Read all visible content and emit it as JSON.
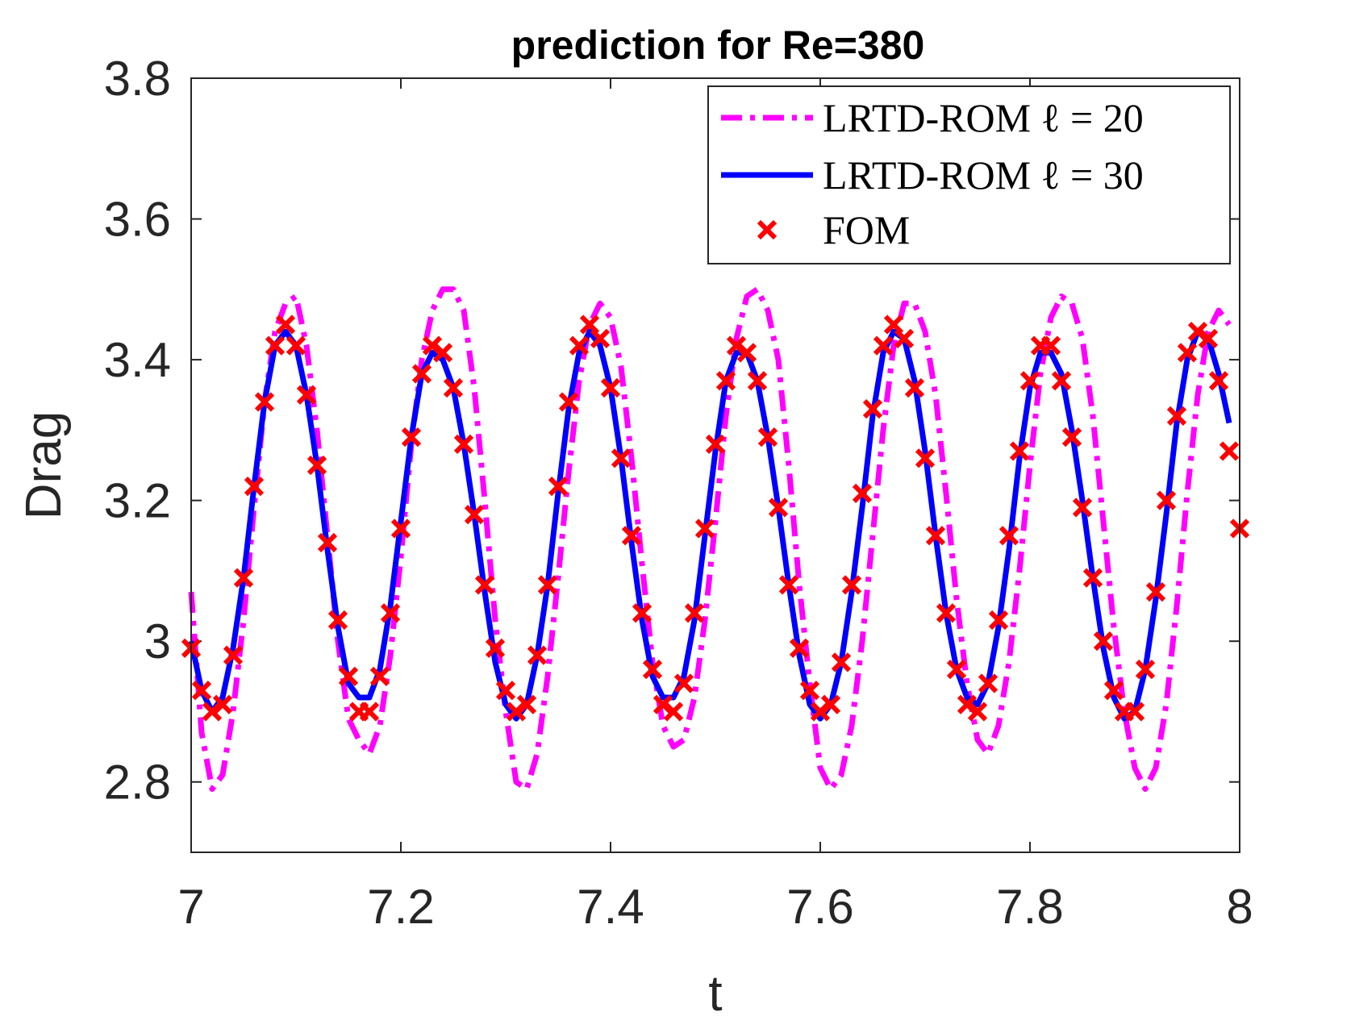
{
  "chart_data": {
    "type": "line",
    "title": "prediction for Re=380",
    "xlabel": "t",
    "ylabel": "Drag",
    "xlim": [
      7,
      8
    ],
    "ylim": [
      2.7,
      3.8
    ],
    "xticks": [
      7,
      7.2,
      7.4,
      7.6,
      7.8,
      8
    ],
    "xtick_labels": [
      "7",
      "7.2",
      "7.4",
      "7.6",
      "7.8",
      "8"
    ],
    "yticks": [
      2.8,
      3.0,
      3.2,
      3.4,
      3.6,
      3.8
    ],
    "ytick_labels": [
      "2.8",
      "3",
      "3.2",
      "3.4",
      "3.6",
      "3.8"
    ],
    "grid": false,
    "legend_position": "top-right",
    "series": [
      {
        "name": "LRTD-ROM ℓ = 20",
        "style": "dash-dot",
        "color": "#ff00ff",
        "x": [
          7.0,
          7.01,
          7.02,
          7.03,
          7.04,
          7.05,
          7.06,
          7.07,
          7.08,
          7.09,
          7.1,
          7.11,
          7.12,
          7.13,
          7.14,
          7.15,
          7.16,
          7.17,
          7.18,
          7.19,
          7.2,
          7.21,
          7.22,
          7.23,
          7.24,
          7.25,
          7.26,
          7.27,
          7.28,
          7.29,
          7.3,
          7.31,
          7.32,
          7.33,
          7.34,
          7.35,
          7.36,
          7.37,
          7.38,
          7.39,
          7.4,
          7.41,
          7.42,
          7.43,
          7.44,
          7.45,
          7.46,
          7.47,
          7.48,
          7.49,
          7.5,
          7.51,
          7.52,
          7.53,
          7.54,
          7.55,
          7.56,
          7.57,
          7.58,
          7.59,
          7.6,
          7.61,
          7.62,
          7.63,
          7.64,
          7.65,
          7.66,
          7.67,
          7.68,
          7.69,
          7.7,
          7.71,
          7.72,
          7.73,
          7.74,
          7.75,
          7.76,
          7.77,
          7.78,
          7.79,
          7.8,
          7.81,
          7.82,
          7.83,
          7.84,
          7.85,
          7.86,
          7.87,
          7.88,
          7.89,
          7.9,
          7.91,
          7.92,
          7.93,
          7.94,
          7.95,
          7.96,
          7.97,
          7.98,
          7.99
        ],
        "y": [
          3.07,
          2.87,
          2.79,
          2.81,
          2.9,
          3.03,
          3.19,
          3.34,
          3.44,
          3.48,
          3.49,
          3.42,
          3.3,
          3.15,
          3.0,
          2.89,
          2.86,
          2.84,
          2.88,
          2.98,
          3.12,
          3.28,
          3.4,
          3.47,
          3.5,
          3.5,
          3.47,
          3.36,
          3.2,
          3.03,
          2.9,
          2.8,
          2.79,
          2.84,
          2.95,
          3.09,
          3.24,
          3.37,
          3.45,
          3.48,
          3.46,
          3.39,
          3.26,
          3.11,
          2.97,
          2.88,
          2.85,
          2.86,
          2.92,
          3.03,
          3.17,
          3.32,
          3.43,
          3.49,
          3.5,
          3.47,
          3.4,
          3.25,
          3.08,
          2.94,
          2.82,
          2.79,
          2.81,
          2.88,
          3.0,
          3.15,
          3.3,
          3.42,
          3.48,
          3.48,
          3.44,
          3.35,
          3.21,
          3.06,
          2.94,
          2.86,
          2.84,
          2.88,
          2.97,
          3.1,
          3.25,
          3.38,
          3.46,
          3.49,
          3.48,
          3.43,
          3.32,
          3.17,
          3.02,
          2.9,
          2.82,
          2.79,
          2.82,
          2.91,
          3.05,
          3.21,
          3.35,
          3.44,
          3.47,
          3.45
        ]
      },
      {
        "name": "LRTD-ROM ℓ = 30",
        "style": "solid",
        "color": "#0000ff",
        "x": [
          7.0,
          7.01,
          7.02,
          7.03,
          7.04,
          7.05,
          7.06,
          7.07,
          7.08,
          7.09,
          7.1,
          7.11,
          7.12,
          7.13,
          7.14,
          7.15,
          7.16,
          7.17,
          7.18,
          7.19,
          7.2,
          7.21,
          7.22,
          7.23,
          7.24,
          7.25,
          7.26,
          7.27,
          7.28,
          7.29,
          7.3,
          7.31,
          7.32,
          7.33,
          7.34,
          7.35,
          7.36,
          7.37,
          7.38,
          7.39,
          7.4,
          7.41,
          7.42,
          7.43,
          7.44,
          7.45,
          7.46,
          7.47,
          7.48,
          7.49,
          7.5,
          7.51,
          7.52,
          7.53,
          7.54,
          7.55,
          7.56,
          7.57,
          7.58,
          7.59,
          7.6,
          7.61,
          7.62,
          7.63,
          7.64,
          7.65,
          7.66,
          7.67,
          7.68,
          7.69,
          7.7,
          7.71,
          7.72,
          7.73,
          7.74,
          7.75,
          7.76,
          7.77,
          7.78,
          7.79,
          7.8,
          7.81,
          7.82,
          7.83,
          7.84,
          7.85,
          7.86,
          7.87,
          7.88,
          7.89,
          7.9,
          7.91,
          7.92,
          7.93,
          7.94,
          7.95,
          7.96,
          7.97,
          7.98,
          7.99
        ],
        "y": [
          3.0,
          2.93,
          2.9,
          2.92,
          2.99,
          3.09,
          3.22,
          3.34,
          3.42,
          3.44,
          3.42,
          3.35,
          3.25,
          3.13,
          3.02,
          2.94,
          2.92,
          2.92,
          2.96,
          3.05,
          3.17,
          3.29,
          3.38,
          3.41,
          3.4,
          3.36,
          3.28,
          3.18,
          3.07,
          2.97,
          2.91,
          2.89,
          2.91,
          2.98,
          3.08,
          3.21,
          3.33,
          3.41,
          3.44,
          3.42,
          3.36,
          3.26,
          3.14,
          3.03,
          2.95,
          2.92,
          2.92,
          2.95,
          3.03,
          3.15,
          3.27,
          3.37,
          3.41,
          3.41,
          3.37,
          3.29,
          3.19,
          3.08,
          2.98,
          2.91,
          2.89,
          2.91,
          2.97,
          3.07,
          3.19,
          3.32,
          3.41,
          3.44,
          3.43,
          3.37,
          3.27,
          3.15,
          3.04,
          2.96,
          2.92,
          2.91,
          2.94,
          3.02,
          3.13,
          3.26,
          3.36,
          3.41,
          3.41,
          3.38,
          3.3,
          3.2,
          3.09,
          2.99,
          2.92,
          2.89,
          2.9,
          2.96,
          3.06,
          3.18,
          3.31,
          3.4,
          3.44,
          3.43,
          3.38,
          3.31
        ]
      },
      {
        "name": "FOM",
        "style": "markers-x",
        "color": "#ff0000",
        "x": [
          7.0,
          7.01,
          7.02,
          7.03,
          7.04,
          7.05,
          7.06,
          7.07,
          7.08,
          7.09,
          7.1,
          7.11,
          7.12,
          7.13,
          7.14,
          7.15,
          7.16,
          7.17,
          7.18,
          7.19,
          7.2,
          7.21,
          7.22,
          7.23,
          7.24,
          7.25,
          7.26,
          7.27,
          7.28,
          7.29,
          7.3,
          7.31,
          7.32,
          7.33,
          7.34,
          7.35,
          7.36,
          7.37,
          7.38,
          7.39,
          7.4,
          7.41,
          7.42,
          7.43,
          7.44,
          7.45,
          7.46,
          7.47,
          7.48,
          7.49,
          7.5,
          7.51,
          7.52,
          7.53,
          7.54,
          7.55,
          7.56,
          7.57,
          7.58,
          7.59,
          7.6,
          7.61,
          7.62,
          7.63,
          7.64,
          7.65,
          7.66,
          7.67,
          7.68,
          7.69,
          7.7,
          7.71,
          7.72,
          7.73,
          7.74,
          7.75,
          7.76,
          7.77,
          7.78,
          7.79,
          7.8,
          7.81,
          7.82,
          7.83,
          7.84,
          7.85,
          7.86,
          7.87,
          7.88,
          7.89,
          7.9,
          7.91,
          7.92,
          7.93,
          7.94,
          7.95,
          7.96,
          7.97,
          7.98,
          7.99,
          8.0
        ],
        "y": [
          2.99,
          2.93,
          2.9,
          2.91,
          2.98,
          3.09,
          3.22,
          3.34,
          3.42,
          3.45,
          3.42,
          3.35,
          3.25,
          3.14,
          3.03,
          2.95,
          2.9,
          2.9,
          2.95,
          3.04,
          3.16,
          3.29,
          3.38,
          3.42,
          3.41,
          3.36,
          3.28,
          3.18,
          3.08,
          2.99,
          2.93,
          2.9,
          2.91,
          2.98,
          3.08,
          3.22,
          3.34,
          3.42,
          3.45,
          3.43,
          3.36,
          3.26,
          3.15,
          3.04,
          2.96,
          2.91,
          2.9,
          2.94,
          3.04,
          3.16,
          3.28,
          3.37,
          3.42,
          3.41,
          3.37,
          3.29,
          3.19,
          3.08,
          2.99,
          2.93,
          2.9,
          2.91,
          2.97,
          3.08,
          3.21,
          3.33,
          3.42,
          3.45,
          3.43,
          3.36,
          3.26,
          3.15,
          3.04,
          2.96,
          2.91,
          2.9,
          2.94,
          3.03,
          3.15,
          3.27,
          3.37,
          3.42,
          3.42,
          3.37,
          3.29,
          3.19,
          3.09,
          3.0,
          2.93,
          2.9,
          2.9,
          2.96,
          3.07,
          3.2,
          3.32,
          3.41,
          3.44,
          3.43,
          3.37,
          3.27,
          3.16
        ]
      }
    ]
  }
}
